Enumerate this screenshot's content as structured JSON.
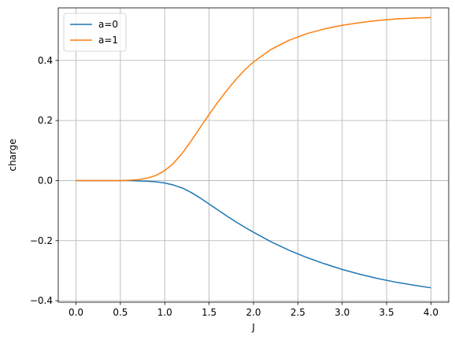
{
  "chart_data": {
    "type": "line",
    "xlabel": "J",
    "ylabel": "charge",
    "xlim": [
      -0.2,
      4.2
    ],
    "ylim": [
      -0.405,
      0.575
    ],
    "x_ticks": [
      0.0,
      0.5,
      1.0,
      1.5,
      2.0,
      2.5,
      3.0,
      3.5,
      4.0
    ],
    "x_tick_labels": [
      "0.0",
      "0.5",
      "1.0",
      "1.5",
      "2.0",
      "2.5",
      "3.0",
      "3.5",
      "4.0"
    ],
    "y_ticks": [
      -0.4,
      -0.2,
      0.0,
      0.2,
      0.4
    ],
    "y_tick_labels": [
      "−0.4",
      "−0.2",
      "0.0",
      "0.2",
      "0.4"
    ],
    "grid": true,
    "legend_position": "top-left",
    "series": [
      {
        "name": "a=0",
        "color": "#1f77b4",
        "x": [
          0.0,
          0.25,
          0.5,
          0.6,
          0.7,
          0.8,
          0.9,
          1.0,
          1.1,
          1.2,
          1.3,
          1.4,
          1.5,
          1.6,
          1.7,
          1.8,
          1.9,
          2.0,
          2.2,
          2.4,
          2.6,
          2.8,
          3.0,
          3.2,
          3.4,
          3.6,
          3.8,
          4.0
        ],
        "values": [
          0.0,
          0.0,
          0.0,
          0.0,
          -0.001,
          -0.002,
          -0.004,
          -0.008,
          -0.015,
          -0.025,
          -0.04,
          -0.058,
          -0.078,
          -0.098,
          -0.118,
          -0.137,
          -0.155,
          -0.172,
          -0.204,
          -0.232,
          -0.256,
          -0.277,
          -0.296,
          -0.312,
          -0.326,
          -0.338,
          -0.348,
          -0.357
        ]
      },
      {
        "name": "a=1",
        "color": "#ff7f0e",
        "x": [
          0.0,
          0.25,
          0.5,
          0.6,
          0.7,
          0.8,
          0.9,
          1.0,
          1.1,
          1.2,
          1.3,
          1.4,
          1.5,
          1.6,
          1.7,
          1.8,
          1.9,
          2.0,
          2.2,
          2.4,
          2.6,
          2.8,
          3.0,
          3.2,
          3.4,
          3.6,
          3.8,
          4.0
        ],
        "values": [
          0.0,
          0.0,
          0.0,
          0.001,
          0.003,
          0.008,
          0.017,
          0.033,
          0.058,
          0.092,
          0.133,
          0.177,
          0.22,
          0.262,
          0.3,
          0.336,
          0.368,
          0.395,
          0.437,
          0.467,
          0.489,
          0.505,
          0.517,
          0.526,
          0.533,
          0.538,
          0.541,
          0.543
        ]
      }
    ]
  }
}
